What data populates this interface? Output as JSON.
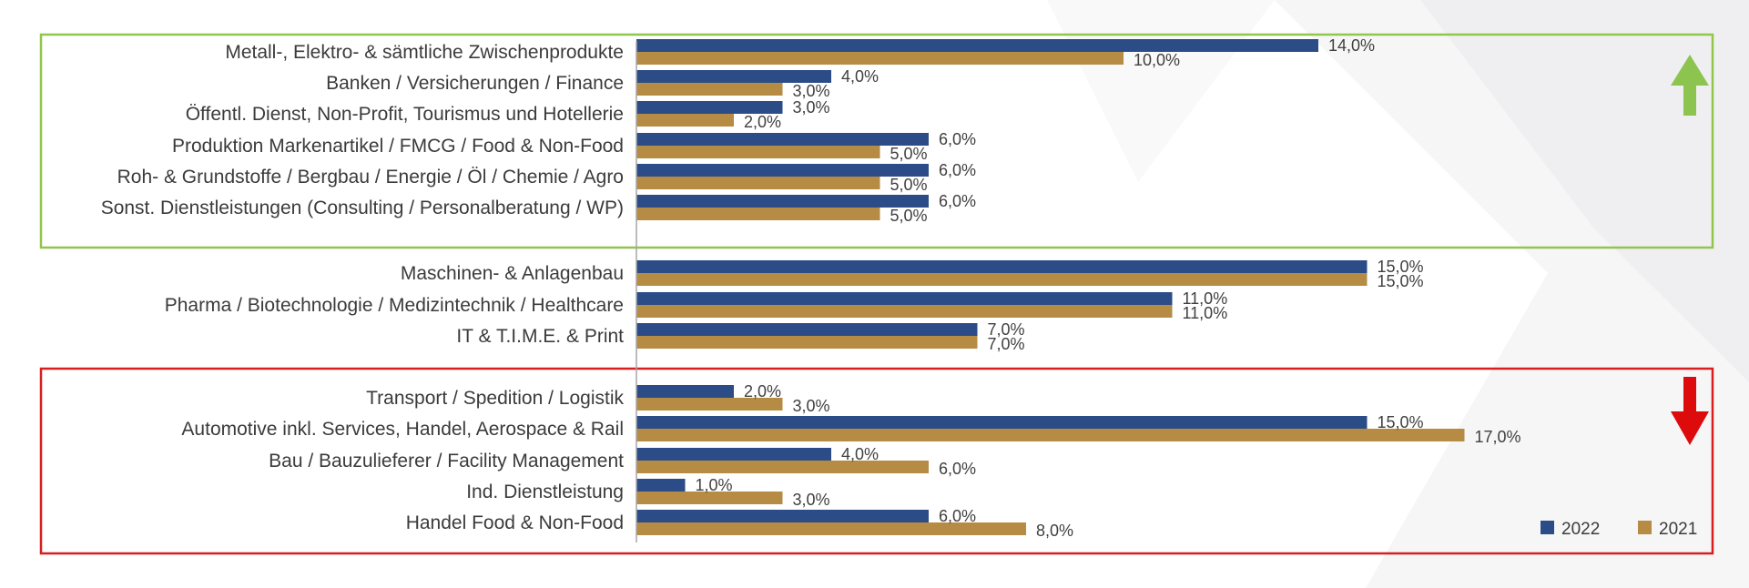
{
  "colors": {
    "series_2022": "#2b4c86",
    "series_2021": "#b68b44",
    "box_up": "#92c54b",
    "box_down": "#d81e1e",
    "arrow_up": "#8dc450",
    "arrow_down": "#dd0b0b",
    "axis": "#a6a6a6"
  },
  "icons": {
    "up": "arrow-up-icon",
    "down": "arrow-down-icon"
  },
  "chart_data": {
    "type": "bar",
    "orientation": "horizontal",
    "grid": false,
    "xlim": [
      0,
      20
    ],
    "legend_position": "bottom-right",
    "categories": [
      "Metall-, Elektro- & sämtliche Zwischenprodukte",
      "Banken / Versicherungen / Finance",
      "Öffentl. Dienst, Non-Profit, Tourismus und Hotellerie",
      "Produktion Markenartikel / FMCG / Food & Non-Food",
      "Roh- & Grundstoffe / Bergbau / Energie / Öl / Chemie / Agro",
      "Sonst. Dienstleistungen (Consulting / Personalberatung / WP)",
      "Maschinen- & Anlagenbau",
      "Pharma / Biotechnologie / Medizintechnik / Healthcare",
      "IT & T.I.M.E. & Print",
      "Transport / Spedition / Logistik",
      "Automotive inkl. Services, Handel, Aerospace & Rail",
      "Bau / Bauzulieferer / Facility Management",
      "Ind. Dienstleistung",
      "Handel Food & Non-Food"
    ],
    "groups": [
      {
        "trend": "up",
        "start": 0,
        "end": 5
      },
      {
        "trend": "none",
        "start": 6,
        "end": 8
      },
      {
        "trend": "down",
        "start": 9,
        "end": 13
      }
    ],
    "series": [
      {
        "name": "2022",
        "values": [
          14,
          4,
          3,
          6,
          6,
          6,
          15,
          11,
          7,
          2,
          15,
          4,
          1,
          6
        ],
        "labels": [
          "14,0%",
          "4,0%",
          "3,0%",
          "6,0%",
          "6,0%",
          "6,0%",
          "15,0%",
          "11,0%",
          "7,0%",
          "2,0%",
          "15,0%",
          "4,0%",
          "1,0%",
          "6,0%"
        ]
      },
      {
        "name": "2021",
        "values": [
          10,
          3,
          2,
          5,
          5,
          5,
          15,
          11,
          7,
          3,
          17,
          6,
          3,
          8
        ],
        "labels": [
          "10,0%",
          "3,0%",
          "2,0%",
          "5,0%",
          "5,0%",
          "5,0%",
          "15,0%",
          "11,0%",
          "7,0%",
          "3,0%",
          "17,0%",
          "6,0%",
          "3,0%",
          "8,0%"
        ]
      }
    ]
  }
}
